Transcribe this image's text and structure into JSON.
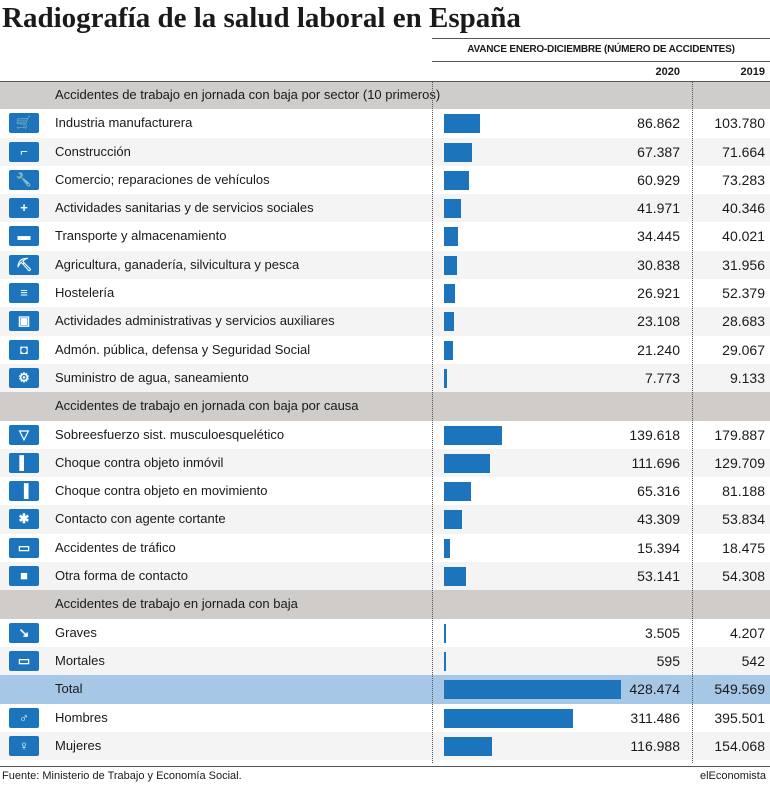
{
  "title": "Radiografía de la salud laboral en España",
  "subtitle": "AVANCE ENERO-DICIEMBRE (NÚMERO DE ACCIDENTES)",
  "years": [
    "2020",
    "2019"
  ],
  "source": "Fuente: Ministerio de Trabajo y Economía Social.",
  "brand": "elEconomista",
  "colors": {
    "bar": "#1c75bc",
    "section": "#cfccc9",
    "total": "#a7c7e7"
  },
  "chart_data": {
    "type": "bar",
    "series": [
      {
        "name": "2020"
      },
      {
        "name": "2019"
      }
    ],
    "rows": [
      {
        "kind": "section",
        "label": "Accidentes de trabajo en jornada con baja por sector (10 primeros)"
      },
      {
        "kind": "item",
        "icon": "shopping-cart-icon",
        "label": "Industria manufacturera",
        "v2020": 86862,
        "t2020": "86.862",
        "t2019": "103.780"
      },
      {
        "kind": "item",
        "icon": "crane-icon",
        "label": "Construcción",
        "v2020": 67387,
        "t2020": "67.387",
        "t2019": "71.664"
      },
      {
        "kind": "item",
        "icon": "wrench-icon",
        "label": "Comercio; reparaciones de vehículos",
        "v2020": 60929,
        "t2020": "60.929",
        "t2019": "73.283"
      },
      {
        "kind": "item",
        "icon": "medical-cross-icon",
        "label": "Actividades sanitarias y de servicios sociales",
        "v2020": 41971,
        "t2020": "41.971",
        "t2019": "40.346"
      },
      {
        "kind": "item",
        "icon": "truck-icon",
        "label": "Transporte y almacenamiento",
        "v2020": 34445,
        "t2020": "34.445",
        "t2019": "40.021"
      },
      {
        "kind": "item",
        "icon": "farmer-icon",
        "label": "Agricultura, ganadería, silvicultura y pesca",
        "v2020": 30838,
        "t2020": "30.838",
        "t2019": "31.956"
      },
      {
        "kind": "item",
        "icon": "cutlery-icon",
        "label": "Hostelería",
        "v2020": 26921,
        "t2020": "26.921",
        "t2019": "52.379"
      },
      {
        "kind": "item",
        "icon": "briefcase-icon",
        "label": "Actividades administrativas y servicios auxiliares",
        "v2020": 23108,
        "t2020": "23.108",
        "t2019": "28.683"
      },
      {
        "kind": "item",
        "icon": "desk-officer-icon",
        "label": "Admón. pública, defensa y Seguridad Social",
        "v2020": 21240,
        "t2020": "21.240",
        "t2019": "29.067"
      },
      {
        "kind": "item",
        "icon": "gears-icon",
        "label": "Suministro de agua, saneamiento",
        "v2020": 7773,
        "t2020": "7.773",
        "t2019": "9.133"
      },
      {
        "kind": "section",
        "label": "Accidentes de trabajo en jornada con baja por causa"
      },
      {
        "kind": "item",
        "icon": "back-strain-icon",
        "label": "Sobreesfuerzo sist. musculoesquelético",
        "v2020": 139618,
        "t2020": "139.618",
        "t2019": "179.887"
      },
      {
        "kind": "item",
        "icon": "wall-collision-icon",
        "label": "Choque contra objeto inmóvil",
        "v2020": 111696,
        "t2020": "111.696",
        "t2019": "129.709"
      },
      {
        "kind": "item",
        "icon": "moving-object-icon",
        "label": "Choque contra objeto en movimiento",
        "v2020": 65316,
        "t2020": "65.316",
        "t2019": "81.188"
      },
      {
        "kind": "item",
        "icon": "saw-blade-icon",
        "label": "Contacto con agente cortante",
        "v2020": 43309,
        "t2020": "43.309",
        "t2019": "53.834"
      },
      {
        "kind": "item",
        "icon": "car-icon",
        "label": "Accidentes de tráfico",
        "v2020": 15394,
        "t2020": "15.394",
        "t2019": "18.475"
      },
      {
        "kind": "item",
        "icon": "contact-icon",
        "label": "Otra forma de contacto",
        "v2020": 53141,
        "t2020": "53.141",
        "t2019": "54.308"
      },
      {
        "kind": "section",
        "label": "Accidentes de trabajo en jornada con baja"
      },
      {
        "kind": "item",
        "icon": "fall-icon",
        "label": "Graves",
        "v2020": 3505,
        "t2020": "3.505",
        "t2019": "4.207"
      },
      {
        "kind": "item",
        "icon": "stretcher-icon",
        "label": "Mortales",
        "v2020": 595,
        "t2020": "595",
        "t2019": "542"
      },
      {
        "kind": "total",
        "label": "Total",
        "v2020": 428474,
        "t2020": "428.474",
        "t2019": "549.569"
      },
      {
        "kind": "item",
        "icon": "men-icon",
        "label": "Hombres",
        "v2020": 311486,
        "t2020": "311.486",
        "t2019": "395.501"
      },
      {
        "kind": "item",
        "icon": "women-icon",
        "label": "Mujeres",
        "v2020": 116988,
        "t2020": "116.988",
        "t2019": "154.068"
      }
    ],
    "xlim": [
      0,
      428474
    ]
  }
}
